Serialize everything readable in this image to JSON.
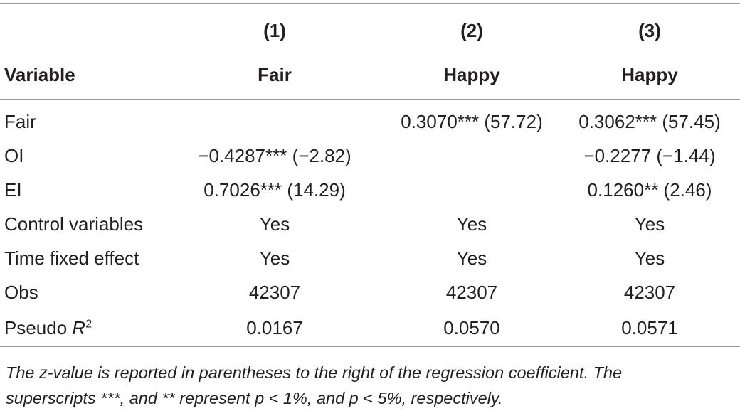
{
  "table": {
    "column_numbers": [
      "(1)",
      "(2)",
      "(3)"
    ],
    "header": {
      "variable_label": "Variable",
      "dependent_variables": [
        "Fair",
        "Happy",
        "Happy"
      ]
    },
    "rows": [
      {
        "label": "Fair",
        "cells": [
          "",
          "0.3070*** (57.72)",
          "0.3062*** (57.45)"
        ]
      },
      {
        "label": "OI",
        "cells": [
          "−0.4287*** (−2.82)",
          "",
          "−0.2277 (−1.44)"
        ]
      },
      {
        "label": "EI",
        "cells": [
          "0.7026*** (14.29)",
          "",
          "0.1260** (2.46)"
        ]
      },
      {
        "label": "Control variables",
        "cells": [
          "Yes",
          "Yes",
          "Yes"
        ]
      },
      {
        "label": "Time fixed effect",
        "cells": [
          "Yes",
          "Yes",
          "Yes"
        ]
      },
      {
        "label": "Obs",
        "cells": [
          "42307",
          "42307",
          "42307"
        ]
      }
    ],
    "pseudo_r2_row": {
      "label_prefix": "Pseudo ",
      "label_symbol": "R",
      "label_superscript": "2",
      "cells": [
        "0.0167",
        "0.0570",
        "0.0571"
      ]
    }
  },
  "note": {
    "line1": "The z-value is reported in parentheses to the right of the regression coefficient. The",
    "line2": "superscripts ***, and ** represent p < 1%, and p < 5%, respectively."
  }
}
